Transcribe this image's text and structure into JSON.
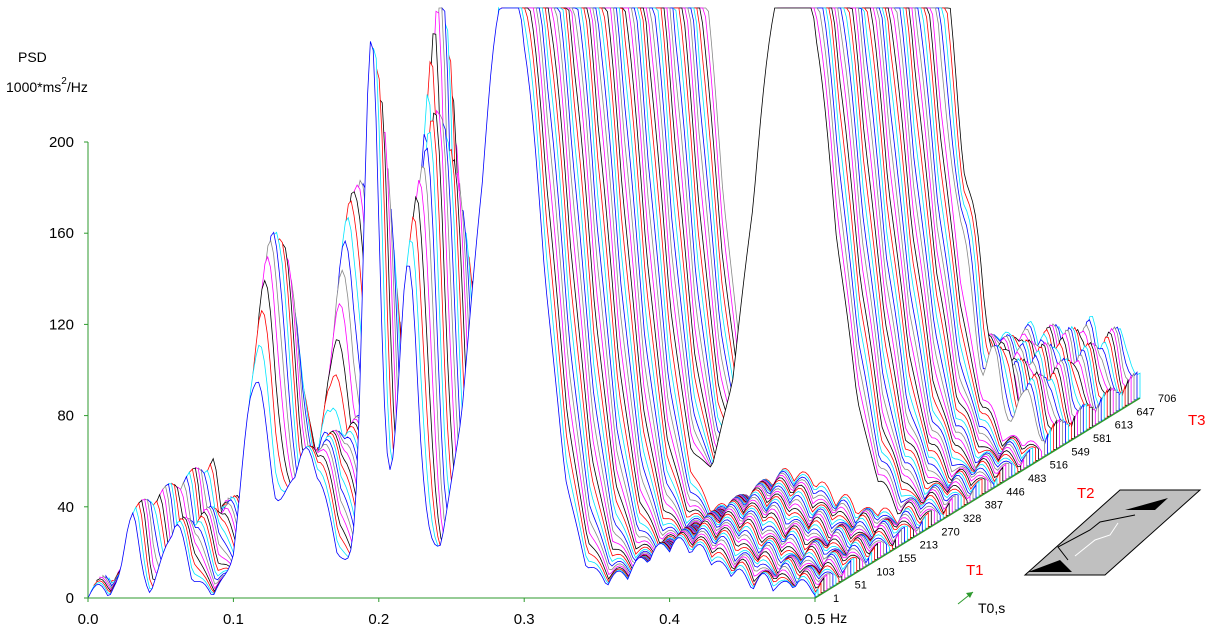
{
  "chart_data": {
    "type": "3d-waterfall",
    "ylabel_line1": "PSD",
    "ylabel_unit": "1000*ms",
    "ylabel_sup": "2",
    "ylabel_tail": "/Hz",
    "xlabel": "Hz",
    "depth_label": "T0,s",
    "x_ticks": [
      "0.0",
      "0.1",
      "0.2",
      "0.3",
      "0.4",
      "0.5"
    ],
    "xlim": [
      0,
      0.5
    ],
    "y_ticks": [
      "0",
      "40",
      "80",
      "120",
      "160",
      "200"
    ],
    "ylim": [
      0,
      200
    ],
    "depth_ticks": [
      "1",
      "51",
      "103",
      "155",
      "213",
      "270",
      "328",
      "387",
      "446",
      "483",
      "516",
      "549",
      "581",
      "613",
      "647",
      "706"
    ],
    "segments": [
      "T1",
      "T2",
      "T3"
    ],
    "peaks": [
      {
        "freq": 0.03,
        "psd": 35
      },
      {
        "freq": 0.06,
        "psd": 30
      },
      {
        "freq": 0.11,
        "psd": 190
      },
      {
        "freq": 0.12,
        "psd": 140
      },
      {
        "freq": 0.19,
        "psd": 260
      },
      {
        "freq": 0.215,
        "psd": 230
      },
      {
        "freq": 0.29,
        "psd": 260
      },
      {
        "freq": 0.41,
        "psd": 250
      }
    ],
    "colors": [
      "#0000ff",
      "#00e5ff",
      "#ff0000",
      "#000000",
      "#ff00ff",
      "#888888"
    ]
  }
}
